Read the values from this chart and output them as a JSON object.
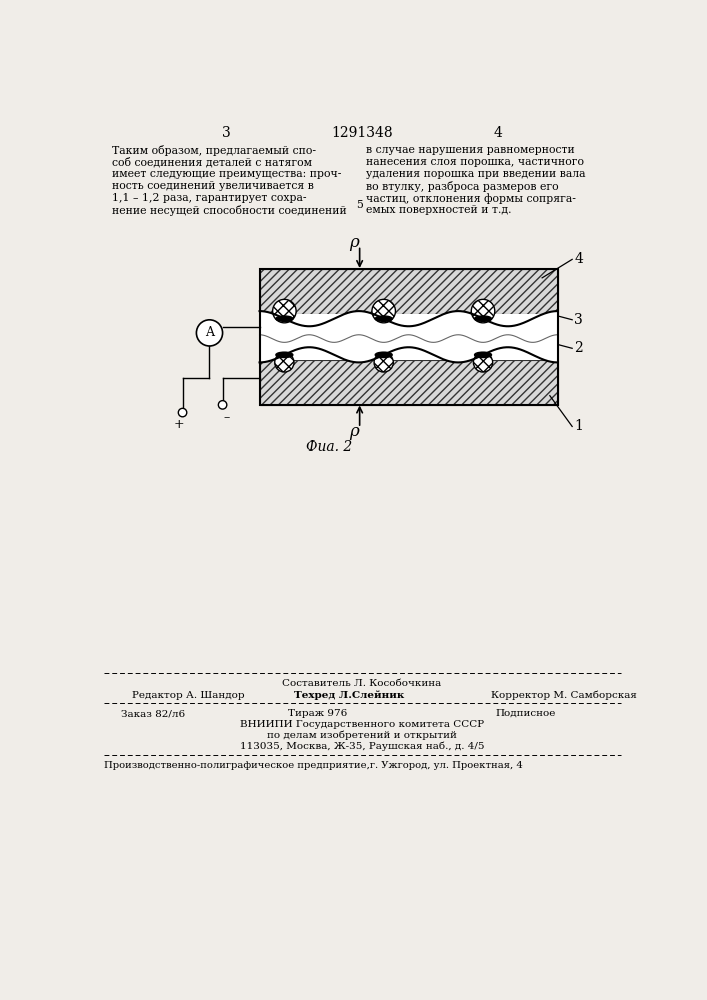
{
  "page_color": "#f0ede8",
  "page_number_left": "3",
  "page_number_center": "1291348",
  "page_number_right": "4",
  "text_left": "Таким образом, предлагаемый спо-\nсоб соединения деталей с натягом\nимеет следующие преимущества: проч-\nность соединений увеличивается в\n1,1 – 1,2 раза, гарантирует сохра-\nнение несущей способности соединений",
  "text_right": "в случае нарушения равномерности\nнанесения слоя порошка, частичного\nудаления порошка при введении вала\nво втулку, разброса размеров его\nчастиц, отклонения формы сопряга-\nемых поверхностей и т.д.",
  "line_number_5": "5",
  "fig_caption": "Фиа. 2",
  "label_1": "1",
  "label_2": "2",
  "label_3": "3",
  "label_4": "4",
  "label_rho": "ρ",
  "label_A": "A",
  "label_plus": "+",
  "label_minus": "–",
  "footer_line1_center": "Составитель Л. Кособочкина",
  "footer_line1_left": "Редактор А. Шандор",
  "footer_line1_center2": "Техред Л.Слейник",
  "footer_line1_right": "Корректор М. Самборская",
  "footer_line2_left": "Заказ 82/л6",
  "footer_line2_center": "Тираж 976",
  "footer_line2_right": "Подписное",
  "footer_line3": "ВНИИПИ Государственного комитета СССР",
  "footer_line4": "по делам изобретений и открытий",
  "footer_line5": "113035, Москва, Ж-35, Раушская наб., д. 4/5",
  "footer_line6": "Производственно-полиграфическое предприятие,г. Ужгород, ул. Проектная, 4"
}
